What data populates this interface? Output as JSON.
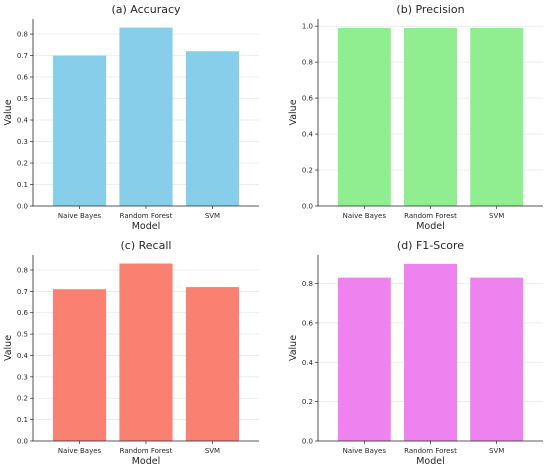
{
  "chart_data": [
    {
      "type": "bar",
      "title": "(a) Accuracy",
      "xlabel": "Model",
      "ylabel": "Value",
      "categories": [
        "Naive Bayes",
        "Random Forest",
        "SVM"
      ],
      "values": [
        0.7,
        0.83,
        0.72
      ],
      "ylim": [
        0,
        0.87
      ],
      "yticks": [
        "0.0",
        "0.1",
        "0.2",
        "0.3",
        "0.4",
        "0.5",
        "0.6",
        "0.7",
        "0.8"
      ],
      "ytick_values": [
        0,
        0.1,
        0.2,
        0.3,
        0.4,
        0.5,
        0.6,
        0.7,
        0.8
      ],
      "color": "#87ceeb",
      "grid": true
    },
    {
      "type": "bar",
      "title": "(b) Precision",
      "xlabel": "Model",
      "ylabel": "Value",
      "categories": [
        "Naive Bayes",
        "Random Forest",
        "SVM"
      ],
      "values": [
        0.99,
        0.99,
        0.99
      ],
      "ylim": [
        0,
        1.04
      ],
      "yticks": [
        "0.0",
        "0.2",
        "0.4",
        "0.6",
        "0.8",
        "1.0"
      ],
      "ytick_values": [
        0,
        0.2,
        0.4,
        0.6,
        0.8,
        1.0
      ],
      "color": "#90ee90",
      "grid": true
    },
    {
      "type": "bar",
      "title": "(c) Recall",
      "xlabel": "Model",
      "ylabel": "Value",
      "categories": [
        "Naive Bayes",
        "Random Forest",
        "SVM"
      ],
      "values": [
        0.71,
        0.83,
        0.72
      ],
      "ylim": [
        0,
        0.87
      ],
      "yticks": [
        "0.0",
        "0.1",
        "0.2",
        "0.3",
        "0.4",
        "0.5",
        "0.6",
        "0.7",
        "0.8"
      ],
      "ytick_values": [
        0,
        0.1,
        0.2,
        0.3,
        0.4,
        0.5,
        0.6,
        0.7,
        0.8
      ],
      "color": "#fa8072",
      "grid": true
    },
    {
      "type": "bar",
      "title": "(d) F1-Score",
      "xlabel": "Model",
      "ylabel": "Value",
      "categories": [
        "Naive Bayes",
        "Random Forest",
        "SVM"
      ],
      "values": [
        0.83,
        0.9,
        0.83
      ],
      "ylim": [
        0,
        0.945
      ],
      "yticks": [
        "0.0",
        "0.2",
        "0.4",
        "0.6",
        "0.8"
      ],
      "ytick_values": [
        0,
        0.2,
        0.4,
        0.6,
        0.8
      ],
      "color": "#ee82ee",
      "grid": true
    }
  ]
}
